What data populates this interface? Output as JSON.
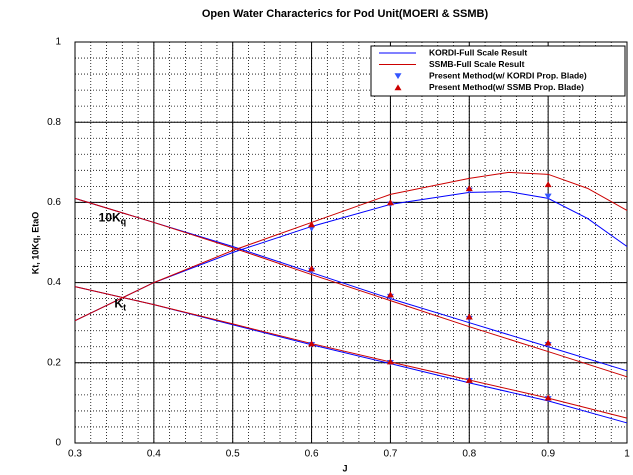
{
  "chart_data": {
    "type": "line",
    "title": "Open Water Characterics for Pod Unit(MOERI & SSMB)",
    "x_label": "J",
    "y_label": "Kt, 10Kq, EtaO",
    "xlim": [
      0.3,
      1
    ],
    "ylim": [
      0,
      1
    ],
    "xticks": [
      0.3,
      0.4,
      0.5,
      0.6,
      0.7,
      0.8,
      0.9,
      1
    ],
    "yticks": [
      0,
      0.2,
      0.4,
      0.6,
      0.8,
      1
    ],
    "x_minor_step": 0.02,
    "y_minor_step": 0.04,
    "grid": true,
    "legend": "top-right",
    "annotations": [
      {
        "text": "10K",
        "sub": "q"
      },
      {
        "text": "K",
        "sub": "t"
      }
    ],
    "series": [
      {
        "name": "KORDI-Full Scale Result",
        "color": "#0000ff",
        "kind": "line",
        "curves": [
          {
            "x": [
              0.3,
              0.4,
              0.5,
              0.6,
              0.7,
              0.8,
              0.9,
              1
            ],
            "values": [
              0.39,
              0.345,
              0.295,
              0.245,
              0.198,
              0.15,
              0.105,
              0.05
            ]
          },
          {
            "x": [
              0.3,
              0.4,
              0.5,
              0.6,
              0.7,
              0.8,
              0.9,
              1
            ],
            "values": [
              0.61,
              0.55,
              0.49,
              0.425,
              0.36,
              0.3,
              0.24,
              0.18
            ]
          },
          {
            "x": [
              0.3,
              0.4,
              0.5,
              0.6,
              0.7,
              0.8,
              0.85,
              0.9,
              0.95,
              1
            ],
            "values": [
              0.305,
              0.4,
              0.475,
              0.54,
              0.595,
              0.625,
              0.627,
              0.61,
              0.56,
              0.49
            ]
          }
        ]
      },
      {
        "name": "SSMB-Full Scale Result",
        "color": "#cc0000",
        "kind": "line",
        "curves": [
          {
            "x": [
              0.3,
              0.4,
              0.5,
              0.6,
              0.7,
              0.8,
              0.9,
              1
            ],
            "values": [
              0.39,
              0.345,
              0.297,
              0.248,
              0.202,
              0.157,
              0.112,
              0.062
            ]
          },
          {
            "x": [
              0.3,
              0.4,
              0.5,
              0.6,
              0.7,
              0.8,
              0.9,
              1
            ],
            "values": [
              0.61,
              0.55,
              0.487,
              0.42,
              0.355,
              0.29,
              0.228,
              0.165
            ]
          },
          {
            "x": [
              0.3,
              0.4,
              0.5,
              0.6,
              0.7,
              0.8,
              0.85,
              0.9,
              0.95,
              1
            ],
            "values": [
              0.305,
              0.4,
              0.48,
              0.55,
              0.62,
              0.66,
              0.675,
              0.67,
              0.635,
              0.58
            ]
          }
        ]
      },
      {
        "name": "Present Method(w/ KORDI Prop. Blade)",
        "color": "#3355ff",
        "kind": "down",
        "curves": [
          {
            "x": [
              0.6,
              0.7,
              0.8,
              0.9
            ],
            "values": [
              0.245,
              0.2,
              0.155,
              0.11
            ]
          },
          {
            "x": [
              0.6,
              0.7,
              0.8,
              0.9
            ],
            "values": [
              0.43,
              0.365,
              0.31,
              0.245
            ]
          },
          {
            "x": [
              0.6,
              0.7,
              0.8,
              0.9
            ],
            "values": [
              0.535,
              0.595,
              0.63,
              0.615
            ]
          }
        ]
      },
      {
        "name": "Present Method(w/ SSMB Prop. Blade)",
        "color": "#cc0000",
        "kind": "up",
        "curves": [
          {
            "x": [
              0.6,
              0.7,
              0.8,
              0.9
            ],
            "values": [
              0.248,
              0.203,
              0.157,
              0.113
            ]
          },
          {
            "x": [
              0.6,
              0.7,
              0.8,
              0.9
            ],
            "values": [
              0.435,
              0.37,
              0.315,
              0.25
            ]
          },
          {
            "x": [
              0.6,
              0.7,
              0.8,
              0.9
            ],
            "values": [
              0.545,
              0.6,
              0.635,
              0.645
            ]
          }
        ]
      }
    ]
  }
}
